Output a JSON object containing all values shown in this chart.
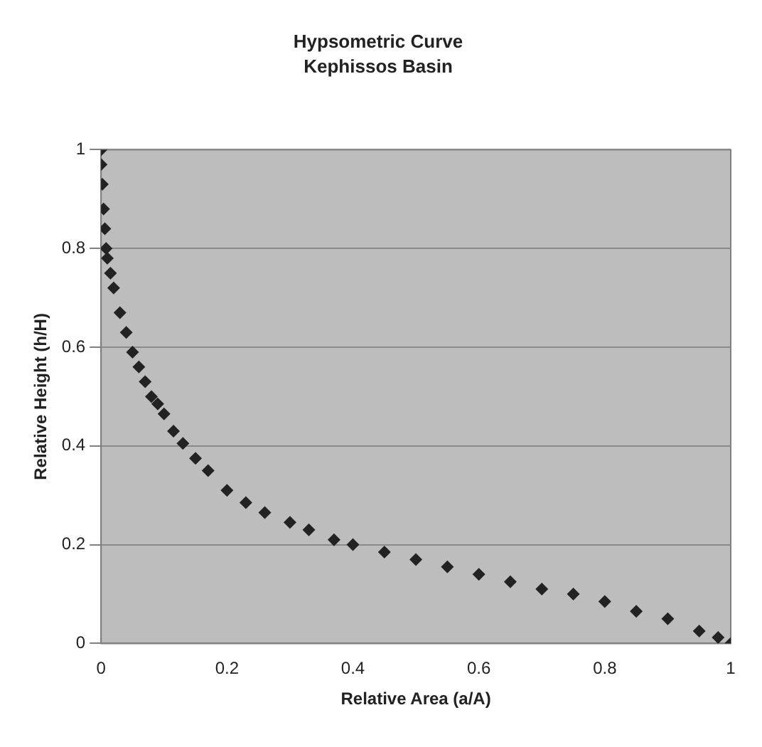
{
  "chart_data": {
    "type": "scatter",
    "title": "Hypsometric Curve",
    "subtitle": "Kephissos Basin",
    "xlabel": "Relative Area (a/A)",
    "ylabel": "Relative Height (h/H)",
    "series": [
      {
        "color": "#222222",
        "x": [
          0,
          0,
          0.002,
          0.004,
          0.006,
          0.008,
          0.01,
          0.015,
          0.02,
          0.03,
          0.04,
          0.05,
          0.06,
          0.07,
          0.08,
          0.09,
          0.1,
          0.115,
          0.13,
          0.15,
          0.17,
          0.2,
          0.23,
          0.26,
          0.3,
          0.33,
          0.37,
          0.4,
          0.45,
          0.5,
          0.55,
          0.6,
          0.65,
          0.7,
          0.75,
          0.8,
          0.85,
          0.9,
          0.95,
          0.98,
          1
        ],
        "values": [
          1,
          0.97,
          0.93,
          0.88,
          0.84,
          0.8,
          0.78,
          0.75,
          0.72,
          0.67,
          0.63,
          0.59,
          0.56,
          0.53,
          0.5,
          0.485,
          0.465,
          0.43,
          0.405,
          0.375,
          0.35,
          0.31,
          0.285,
          0.265,
          0.245,
          0.23,
          0.21,
          0.2,
          0.185,
          0.17,
          0.155,
          0.14,
          0.125,
          0.11,
          0.1,
          0.085,
          0.065,
          0.05,
          0.025,
          0.012,
          0
        ]
      }
    ],
    "xlim": [
      0,
      1
    ],
    "ylim": [
      0,
      1
    ],
    "xticks": [
      0,
      0.2,
      0.4,
      0.6,
      0.8,
      1
    ],
    "yticks": [
      0,
      0.2,
      0.4,
      0.6,
      0.8,
      1
    ],
    "grid": "y",
    "marker": "diamond",
    "legend": false
  }
}
